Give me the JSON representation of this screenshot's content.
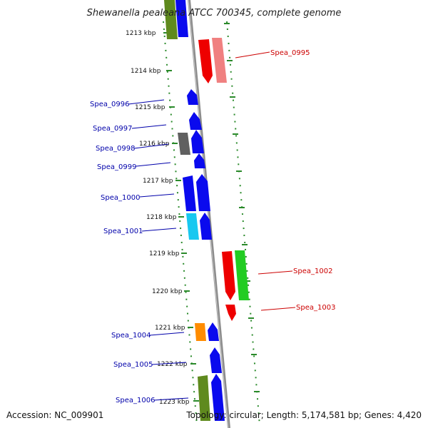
{
  "title": "Shewanella pealeana ATCC 700345, complete genome",
  "footer": {
    "accession": "Accession: NC_009901",
    "summary": "Topology: circular; Length: 5,174,581 bp; Genes: 4,420"
  },
  "colors": {
    "forward_label": "#0000aa",
    "reverse_label": "#cc0000",
    "backbone": "#888888",
    "ruler": "#2a8a2a"
  },
  "ticks": [
    "1213 kbp",
    "1214 kbp",
    "1215 kbp",
    "1216 kbp",
    "1217 kbp",
    "1218 kbp",
    "1219 kbp",
    "1220 kbp",
    "1221 kbp",
    "1222 kbp",
    "1223 kbp"
  ],
  "labels_left": [
    "Spea_0996",
    "Spea_0997",
    "Spea_0998",
    "Spea_0999",
    "Spea_1000",
    "Spea_1001",
    "Spea_1004",
    "Spea_1005",
    "Spea_1006"
  ],
  "labels_right": [
    "Spea_0995",
    "Spea_1002",
    "Spea_1003"
  ],
  "gene_colors": {
    "blue": "#0a0aee",
    "olive": "#5f8a1e",
    "red": "#ee0000",
    "pink": "#f08080",
    "gray": "#606060",
    "cyan": "#18c8f0",
    "green": "#22cc22",
    "orange": "#ff8c00"
  }
}
